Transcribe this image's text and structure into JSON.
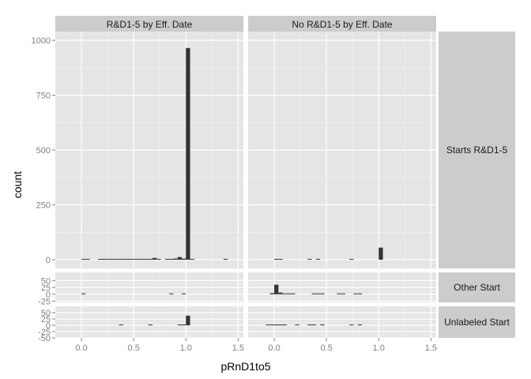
{
  "chart_data": {
    "type": "bar",
    "subtype": "faceted-histogram",
    "xlabel": "pRnD1to5",
    "ylabel": "count",
    "xlim": [
      -0.25,
      1.55
    ],
    "x_ticks": [
      "0.0",
      "0.5",
      "1.0",
      "1.5"
    ],
    "x_tick_values": [
      0,
      0.5,
      1.0,
      1.5
    ],
    "bin_width": 0.04,
    "grid": true,
    "legend": "none",
    "colors": {
      "panel_background": "#E5E5E5",
      "grid": "#FFFFFF",
      "bar_fill": "#333333",
      "strip_background": "#CCCCCC",
      "tick_label": "#7F7F7F"
    },
    "columns": [
      "R&D1-5 by Eff. Date",
      "No R&D1-5 by Eff. Date"
    ],
    "rows": [
      {
        "label": "Starts R&D1-5",
        "ylim": [
          -40,
          1040
        ],
        "y_ticks": [
          "0",
          "250",
          "500",
          "750",
          "1000"
        ],
        "y_tick_values": [
          0,
          250,
          500,
          750,
          1000
        ]
      },
      {
        "label": "Other Start",
        "ylim": [
          -30,
          80
        ],
        "y_ticks": [
          "50",
          "25",
          "0",
          "-25"
        ],
        "y_tick_values": [
          50,
          25,
          0,
          -25
        ]
      },
      {
        "label": "Unlabeled Start",
        "ylim": [
          -50,
          75
        ],
        "y_ticks": [
          "50",
          "25",
          "0",
          "-25",
          "-50"
        ],
        "y_tick_values": [
          50,
          25,
          0,
          -25,
          -50
        ]
      }
    ],
    "panels": [
      {
        "row": 0,
        "col": 0,
        "bins": [
          {
            "x": 0.0,
            "count": 2
          },
          {
            "x": 0.04,
            "count": 2
          },
          {
            "x": 0.16,
            "count": 2
          },
          {
            "x": 0.2,
            "count": 2
          },
          {
            "x": 0.24,
            "count": 2
          },
          {
            "x": 0.28,
            "count": 2
          },
          {
            "x": 0.32,
            "count": 2
          },
          {
            "x": 0.36,
            "count": 2
          },
          {
            "x": 0.4,
            "count": 2
          },
          {
            "x": 0.44,
            "count": 2
          },
          {
            "x": 0.48,
            "count": 2
          },
          {
            "x": 0.52,
            "count": 2
          },
          {
            "x": 0.56,
            "count": 2
          },
          {
            "x": 0.6,
            "count": 2
          },
          {
            "x": 0.64,
            "count": 2
          },
          {
            "x": 0.68,
            "count": 8
          },
          {
            "x": 0.72,
            "count": 3
          },
          {
            "x": 0.8,
            "count": 3
          },
          {
            "x": 0.84,
            "count": 3
          },
          {
            "x": 0.88,
            "count": 5
          },
          {
            "x": 0.92,
            "count": 12
          },
          {
            "x": 0.96,
            "count": 5
          },
          {
            "x": 1.0,
            "count": 965
          },
          {
            "x": 1.04,
            "count": 3
          },
          {
            "x": 1.36,
            "count": 2
          }
        ]
      },
      {
        "row": 0,
        "col": 1,
        "bins": [
          {
            "x": 0.0,
            "count": 2
          },
          {
            "x": 0.04,
            "count": 2
          },
          {
            "x": 0.32,
            "count": 2
          },
          {
            "x": 0.4,
            "count": 2
          },
          {
            "x": 0.72,
            "count": 2
          },
          {
            "x": 1.0,
            "count": 55
          }
        ]
      },
      {
        "row": 1,
        "col": 0,
        "bins": [
          {
            "x": 0.0,
            "count": 2
          },
          {
            "x": 0.84,
            "count": 1
          },
          {
            "x": 0.96,
            "count": 1
          }
        ]
      },
      {
        "row": 1,
        "col": 1,
        "bins": [
          {
            "x": -0.04,
            "count": 4
          },
          {
            "x": 0.0,
            "count": 35
          },
          {
            "x": 0.04,
            "count": 6
          },
          {
            "x": 0.08,
            "count": 2
          },
          {
            "x": 0.12,
            "count": 2
          },
          {
            "x": 0.16,
            "count": 2
          },
          {
            "x": 0.36,
            "count": 1
          },
          {
            "x": 0.4,
            "count": 1
          },
          {
            "x": 0.44,
            "count": 1
          },
          {
            "x": 0.6,
            "count": 1
          },
          {
            "x": 0.64,
            "count": 1
          },
          {
            "x": 0.76,
            "count": 1
          },
          {
            "x": 0.8,
            "count": 1
          }
        ]
      },
      {
        "row": 2,
        "col": 0,
        "bins": [
          {
            "x": 0.36,
            "count": 1
          },
          {
            "x": 0.64,
            "count": 1
          },
          {
            "x": 0.92,
            "count": 2
          },
          {
            "x": 0.96,
            "count": 3
          },
          {
            "x": 1.0,
            "count": 38
          }
        ]
      },
      {
        "row": 2,
        "col": 1,
        "bins": [
          {
            "x": -0.08,
            "count": 1
          },
          {
            "x": -0.04,
            "count": 1
          },
          {
            "x": 0.0,
            "count": 1
          },
          {
            "x": 0.04,
            "count": 1
          },
          {
            "x": 0.08,
            "count": 1
          },
          {
            "x": 0.2,
            "count": 1
          },
          {
            "x": 0.32,
            "count": 1
          },
          {
            "x": 0.36,
            "count": 1
          },
          {
            "x": 0.44,
            "count": 1
          },
          {
            "x": 0.72,
            "count": 1
          },
          {
            "x": 0.8,
            "count": 1
          }
        ]
      }
    ]
  }
}
